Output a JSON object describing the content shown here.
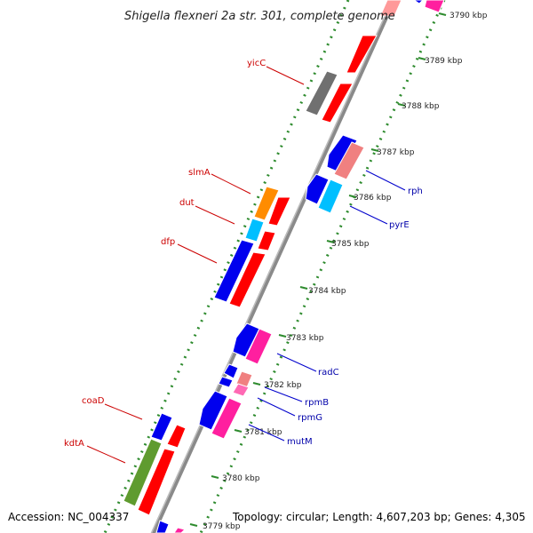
{
  "title": "Shigella flexneri 2a str. 301, complete genome",
  "footer": {
    "accession": "Accession: NC_004337",
    "topology": "Topology: circular; Length: 4,607,203 bp; Genes: 4,305"
  },
  "colors": {
    "forward_label": "#cc0000",
    "reverse_label": "#0000aa",
    "backbone": "#888888",
    "tick": "#2e8b2e",
    "tick_label_line": "#3a8a3a"
  },
  "kbp_ticks": [
    {
      "label": "3790 kbp"
    },
    {
      "label": "3789 kbp"
    },
    {
      "label": "3788 kbp"
    },
    {
      "label": "3787 kbp"
    },
    {
      "label": "3786 kbp"
    },
    {
      "label": "3785 kbp"
    },
    {
      "label": "3784 kbp"
    },
    {
      "label": "3783 kbp"
    },
    {
      "label": "3782 kbp"
    },
    {
      "label": "3781 kbp"
    },
    {
      "label": "3780 kbp"
    },
    {
      "label": "3779 kbp"
    }
  ],
  "gene_labels": [
    {
      "name": "yicC",
      "strand": "forward"
    },
    {
      "name": "slmA",
      "strand": "forward"
    },
    {
      "name": "dut",
      "strand": "forward"
    },
    {
      "name": "dfp",
      "strand": "forward"
    },
    {
      "name": "coaD",
      "strand": "forward"
    },
    {
      "name": "kdtA",
      "strand": "forward"
    },
    {
      "name": "rph",
      "strand": "reverse"
    },
    {
      "name": "pyrE",
      "strand": "reverse"
    },
    {
      "name": "radC",
      "strand": "reverse"
    },
    {
      "name": "rpmB",
      "strand": "reverse"
    },
    {
      "name": "rpmG",
      "strand": "reverse"
    },
    {
      "name": "mutM",
      "strand": "reverse"
    }
  ]
}
